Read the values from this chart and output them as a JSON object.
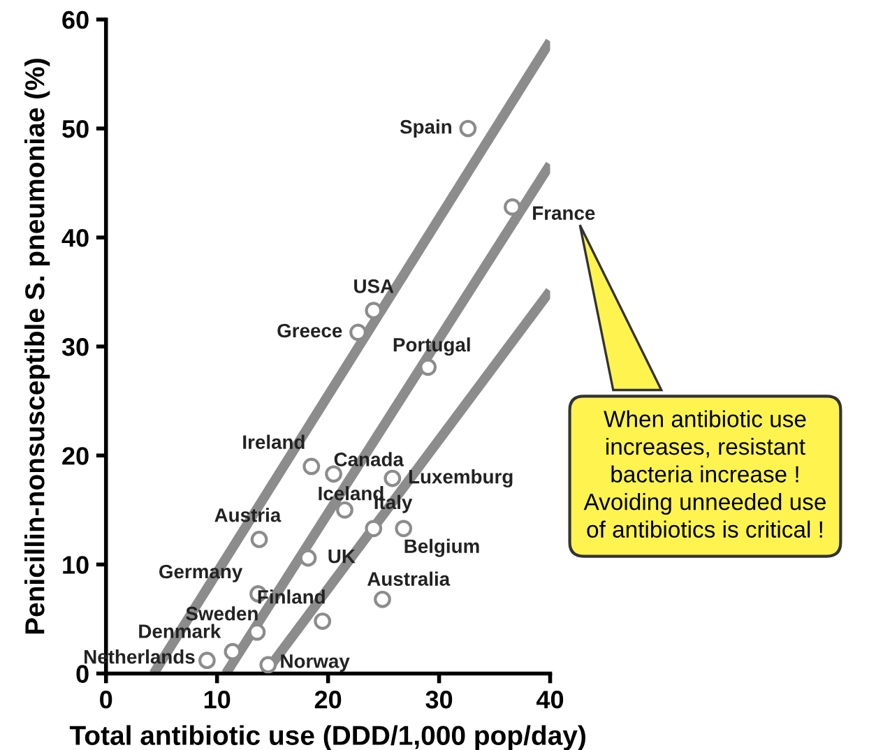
{
  "chart_data": {
    "type": "scatter",
    "xlabel": "Total antibiotic use (DDD/1,000 pop/day)",
    "ylabel": "Penicillin-nonsusceptible S. pneumoniae (%)",
    "xlim": [
      0,
      40
    ],
    "ylim": [
      0,
      60
    ],
    "xticks": [
      0,
      10,
      20,
      30,
      40
    ],
    "yticks": [
      0,
      10,
      20,
      30,
      40,
      50,
      60
    ],
    "grid": false,
    "legend": false,
    "series": [
      {
        "marker": "circle",
        "color": "#8c8c8c",
        "x": [
          32.6,
          36.6,
          24.1,
          22.7,
          29.0,
          18.5,
          20.5,
          25.8,
          21.5,
          24.1,
          26.8,
          13.8,
          18.2,
          13.7,
          24.9,
          19.5,
          13.6,
          11.4,
          9.1,
          14.6
        ],
        "values": [
          50.0,
          42.8,
          33.3,
          31.3,
          28.1,
          19.0,
          18.3,
          17.9,
          15.0,
          13.3,
          13.3,
          12.3,
          10.6,
          7.3,
          6.8,
          4.8,
          3.8,
          2.0,
          1.2,
          0.8
        ]
      },
      {
        "type": "line",
        "color": "#8c8c8c",
        "x": [
          4.3,
          40
        ],
        "values": [
          0,
          58
        ]
      },
      {
        "type": "line",
        "color": "#8c8c8c",
        "x": [
          10.8,
          40
        ],
        "values": [
          0,
          46.7
        ]
      },
      {
        "type": "line",
        "color": "#8c8c8c",
        "x": [
          14.3,
          40
        ],
        "values": [
          0,
          35.1
        ]
      }
    ],
    "annotations": [
      {
        "text": "Spain",
        "x": 32.6,
        "y": 50.0
      },
      {
        "text": "France",
        "x": 36.6,
        "y": 42.8
      },
      {
        "text": "USA",
        "x": 24.1,
        "y": 33.3
      },
      {
        "text": "Greece",
        "x": 22.7,
        "y": 31.3
      },
      {
        "text": "Portugal",
        "x": 29.0,
        "y": 28.1
      },
      {
        "text": "Ireland",
        "x": 18.5,
        "y": 19.0
      },
      {
        "text": "Canada",
        "x": 20.5,
        "y": 18.3
      },
      {
        "text": "Luxemburg",
        "x": 25.8,
        "y": 17.9
      },
      {
        "text": "Iceland",
        "x": 21.5,
        "y": 15.0
      },
      {
        "text": "Italy",
        "x": 24.1,
        "y": 13.3
      },
      {
        "text": "Belgium",
        "x": 26.8,
        "y": 13.3
      },
      {
        "text": "Austria",
        "x": 13.8,
        "y": 12.3
      },
      {
        "text": "UK",
        "x": 18.2,
        "y": 10.6
      },
      {
        "text": "Germany",
        "x": 13.7,
        "y": 7.3
      },
      {
        "text": "Australia",
        "x": 24.9,
        "y": 6.8
      },
      {
        "text": "Finland",
        "x": 19.5,
        "y": 4.8
      },
      {
        "text": "Sweden",
        "x": 13.6,
        "y": 3.8
      },
      {
        "text": "Denmark",
        "x": 11.4,
        "y": 2.0
      },
      {
        "text": "Netherlands",
        "x": 9.1,
        "y": 1.2
      },
      {
        "text": "Norway",
        "x": 14.6,
        "y": 0.8
      },
      "When antibiotic use\nincreases, resistant\nbacteria increase !\nAvoiding unneeded use\nof antibiotics is critical !"
    ]
  }
}
